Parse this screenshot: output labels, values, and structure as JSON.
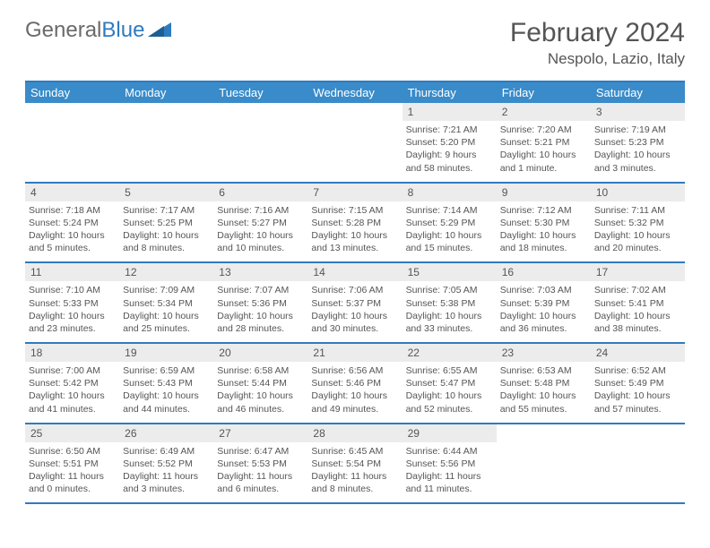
{
  "logo": {
    "part1": "General",
    "part2": "Blue"
  },
  "title": "February 2024",
  "location": "Nespolo, Lazio, Italy",
  "colors": {
    "header_bg": "#3a8bc9",
    "border": "#2f7bbf",
    "daynum_bg": "#ececec",
    "text": "#555555",
    "logo_gray": "#6a6a6a"
  },
  "dayHeaders": [
    "Sunday",
    "Monday",
    "Tuesday",
    "Wednesday",
    "Thursday",
    "Friday",
    "Saturday"
  ],
  "weeks": [
    [
      null,
      null,
      null,
      null,
      {
        "num": "1",
        "sunrise": "7:21 AM",
        "sunset": "5:20 PM",
        "daylight": "9 hours and 58 minutes."
      },
      {
        "num": "2",
        "sunrise": "7:20 AM",
        "sunset": "5:21 PM",
        "daylight": "10 hours and 1 minute."
      },
      {
        "num": "3",
        "sunrise": "7:19 AM",
        "sunset": "5:23 PM",
        "daylight": "10 hours and 3 minutes."
      }
    ],
    [
      {
        "num": "4",
        "sunrise": "7:18 AM",
        "sunset": "5:24 PM",
        "daylight": "10 hours and 5 minutes."
      },
      {
        "num": "5",
        "sunrise": "7:17 AM",
        "sunset": "5:25 PM",
        "daylight": "10 hours and 8 minutes."
      },
      {
        "num": "6",
        "sunrise": "7:16 AM",
        "sunset": "5:27 PM",
        "daylight": "10 hours and 10 minutes."
      },
      {
        "num": "7",
        "sunrise": "7:15 AM",
        "sunset": "5:28 PM",
        "daylight": "10 hours and 13 minutes."
      },
      {
        "num": "8",
        "sunrise": "7:14 AM",
        "sunset": "5:29 PM",
        "daylight": "10 hours and 15 minutes."
      },
      {
        "num": "9",
        "sunrise": "7:12 AM",
        "sunset": "5:30 PM",
        "daylight": "10 hours and 18 minutes."
      },
      {
        "num": "10",
        "sunrise": "7:11 AM",
        "sunset": "5:32 PM",
        "daylight": "10 hours and 20 minutes."
      }
    ],
    [
      {
        "num": "11",
        "sunrise": "7:10 AM",
        "sunset": "5:33 PM",
        "daylight": "10 hours and 23 minutes."
      },
      {
        "num": "12",
        "sunrise": "7:09 AM",
        "sunset": "5:34 PM",
        "daylight": "10 hours and 25 minutes."
      },
      {
        "num": "13",
        "sunrise": "7:07 AM",
        "sunset": "5:36 PM",
        "daylight": "10 hours and 28 minutes."
      },
      {
        "num": "14",
        "sunrise": "7:06 AM",
        "sunset": "5:37 PM",
        "daylight": "10 hours and 30 minutes."
      },
      {
        "num": "15",
        "sunrise": "7:05 AM",
        "sunset": "5:38 PM",
        "daylight": "10 hours and 33 minutes."
      },
      {
        "num": "16",
        "sunrise": "7:03 AM",
        "sunset": "5:39 PM",
        "daylight": "10 hours and 36 minutes."
      },
      {
        "num": "17",
        "sunrise": "7:02 AM",
        "sunset": "5:41 PM",
        "daylight": "10 hours and 38 minutes."
      }
    ],
    [
      {
        "num": "18",
        "sunrise": "7:00 AM",
        "sunset": "5:42 PM",
        "daylight": "10 hours and 41 minutes."
      },
      {
        "num": "19",
        "sunrise": "6:59 AM",
        "sunset": "5:43 PM",
        "daylight": "10 hours and 44 minutes."
      },
      {
        "num": "20",
        "sunrise": "6:58 AM",
        "sunset": "5:44 PM",
        "daylight": "10 hours and 46 minutes."
      },
      {
        "num": "21",
        "sunrise": "6:56 AM",
        "sunset": "5:46 PM",
        "daylight": "10 hours and 49 minutes."
      },
      {
        "num": "22",
        "sunrise": "6:55 AM",
        "sunset": "5:47 PM",
        "daylight": "10 hours and 52 minutes."
      },
      {
        "num": "23",
        "sunrise": "6:53 AM",
        "sunset": "5:48 PM",
        "daylight": "10 hours and 55 minutes."
      },
      {
        "num": "24",
        "sunrise": "6:52 AM",
        "sunset": "5:49 PM",
        "daylight": "10 hours and 57 minutes."
      }
    ],
    [
      {
        "num": "25",
        "sunrise": "6:50 AM",
        "sunset": "5:51 PM",
        "daylight": "11 hours and 0 minutes."
      },
      {
        "num": "26",
        "sunrise": "6:49 AM",
        "sunset": "5:52 PM",
        "daylight": "11 hours and 3 minutes."
      },
      {
        "num": "27",
        "sunrise": "6:47 AM",
        "sunset": "5:53 PM",
        "daylight": "11 hours and 6 minutes."
      },
      {
        "num": "28",
        "sunrise": "6:45 AM",
        "sunset": "5:54 PM",
        "daylight": "11 hours and 8 minutes."
      },
      {
        "num": "29",
        "sunrise": "6:44 AM",
        "sunset": "5:56 PM",
        "daylight": "11 hours and 11 minutes."
      },
      null,
      null
    ]
  ],
  "labels": {
    "sunrise": "Sunrise: ",
    "sunset": "Sunset: ",
    "daylight": "Daylight: "
  }
}
